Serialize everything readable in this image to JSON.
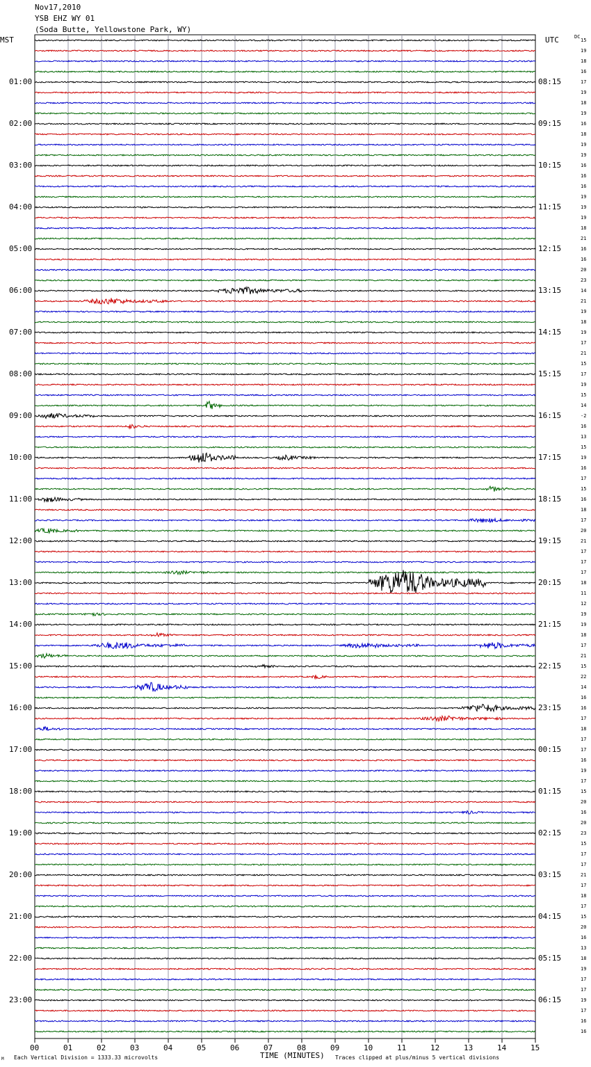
{
  "header": {
    "date": "Nov17,2010",
    "station": "YSB EHZ WY 01",
    "location": "(Soda Butte, Yellowstone Park, WY)"
  },
  "left_timezone": "MST",
  "right_timezone": "UTC",
  "dc_label": "DC",
  "footer": {
    "scale_note": "Each Vertical Division = 1333.33 microvolts",
    "clip_note": "Traces clipped at plus/minus 5 vertical divisions",
    "corner_mark": "M"
  },
  "colors": {
    "trace_cycle": [
      "#000000",
      "#cc0000",
      "#0000cc",
      "#006600"
    ],
    "grid": "#9999aa"
  },
  "chart_data": {
    "type": "line",
    "title": "YSB EHZ WY 01",
    "xlabel": "TIME (MINUTES)",
    "ylabel": "",
    "x_ticks": [
      "00",
      "01",
      "02",
      "03",
      "04",
      "05",
      "06",
      "07",
      "08",
      "09",
      "10",
      "11",
      "12",
      "13",
      "14",
      "15"
    ],
    "xlim": [
      0,
      15
    ],
    "left_hour_labels": [
      "01:00",
      "02:00",
      "03:00",
      "04:00",
      "05:00",
      "06:00",
      "07:00",
      "08:00",
      "09:00",
      "10:00",
      "11:00",
      "12:00",
      "13:00",
      "14:00",
      "15:00",
      "16:00",
      "17:00",
      "18:00",
      "19:00",
      "20:00",
      "21:00",
      "22:00",
      "23:00"
    ],
    "right_hour_labels": [
      "08:15",
      "09:15",
      "10:15",
      "11:15",
      "12:15",
      "13:15",
      "14:15",
      "15:15",
      "16:15",
      "17:15",
      "18:15",
      "19:15",
      "20:15",
      "21:15",
      "22:15",
      "23:15",
      "00:15",
      "01:15",
      "02:15",
      "03:15",
      "04:15",
      "05:15",
      "06:15"
    ],
    "trace_dc_offsets": [
      "15",
      "19",
      "18",
      "16",
      "17",
      "19",
      "18",
      "19",
      "16",
      "18",
      "19",
      "19",
      "16",
      "16",
      "16",
      "19",
      "19",
      "19",
      "18",
      "21",
      "16",
      "16",
      "20",
      "23",
      "14",
      "21",
      "19",
      "18",
      "19",
      "17",
      "21",
      "15",
      "17",
      "19",
      "15",
      "14",
      "-2",
      "16",
      "13",
      "15",
      "19",
      "16",
      "17",
      "15",
      "16",
      "18",
      "17",
      "20",
      "21",
      "17",
      "17",
      "17",
      "18",
      "11",
      "12",
      "19",
      "19",
      "18",
      "17",
      "21",
      "15",
      "22",
      "14",
      "16",
      "16",
      "17",
      "18",
      "17",
      "17",
      "16",
      "19",
      "17",
      "15",
      "20",
      "16",
      "20",
      "23",
      "15",
      "17",
      "17",
      "21",
      "17",
      "18",
      "17",
      "15",
      "20",
      "16",
      "13",
      "18",
      "19",
      "17",
      "17",
      "19",
      "17",
      "16",
      "16"
    ],
    "events": [
      {
        "trace": 24,
        "start_min": 5.5,
        "end_min": 8.0,
        "amplitude": 1.8
      },
      {
        "trace": 25,
        "start_min": 1.5,
        "end_min": 4.0,
        "amplitude": 1.5
      },
      {
        "trace": 35,
        "start_min": 5.1,
        "end_min": 5.6,
        "amplitude": 2.5
      },
      {
        "trace": 36,
        "start_min": 0.0,
        "end_min": 1.8,
        "amplitude": 1.3
      },
      {
        "trace": 37,
        "start_min": 2.7,
        "end_min": 3.3,
        "amplitude": 1.1
      },
      {
        "trace": 40,
        "start_min": 4.6,
        "end_min": 6.0,
        "amplitude": 3.2
      },
      {
        "trace": 40,
        "start_min": 7.2,
        "end_min": 8.4,
        "amplitude": 1.2
      },
      {
        "trace": 43,
        "start_min": 13.5,
        "end_min": 14.2,
        "amplitude": 1.3
      },
      {
        "trace": 44,
        "start_min": 0.1,
        "end_min": 1.4,
        "amplitude": 1.2
      },
      {
        "trace": 46,
        "start_min": 12.9,
        "end_min": 15.0,
        "amplitude": 0.9
      },
      {
        "trace": 47,
        "start_min": 0.0,
        "end_min": 1.3,
        "amplitude": 1.1
      },
      {
        "trace": 51,
        "start_min": 3.9,
        "end_min": 5.2,
        "amplitude": 0.9
      },
      {
        "trace": 52,
        "start_min": 10.0,
        "end_min": 13.5,
        "amplitude": 7.0
      },
      {
        "trace": 55,
        "start_min": 1.5,
        "end_min": 2.2,
        "amplitude": 1.0
      },
      {
        "trace": 57,
        "start_min": 3.5,
        "end_min": 4.2,
        "amplitude": 1.0
      },
      {
        "trace": 58,
        "start_min": 1.7,
        "end_min": 4.5,
        "amplitude": 1.6
      },
      {
        "trace": 58,
        "start_min": 9.2,
        "end_min": 11.5,
        "amplitude": 1.2
      },
      {
        "trace": 58,
        "start_min": 13.2,
        "end_min": 15.0,
        "amplitude": 1.6
      },
      {
        "trace": 59,
        "start_min": 0.0,
        "end_min": 1.0,
        "amplitude": 1.1
      },
      {
        "trace": 60,
        "start_min": 6.6,
        "end_min": 7.2,
        "amplitude": 0.8
      },
      {
        "trace": 61,
        "start_min": 8.3,
        "end_min": 8.8,
        "amplitude": 1.0
      },
      {
        "trace": 62,
        "start_min": 3.0,
        "end_min": 4.6,
        "amplitude": 2.5
      },
      {
        "trace": 64,
        "start_min": 12.8,
        "end_min": 15.0,
        "amplitude": 2.0
      },
      {
        "trace": 65,
        "start_min": 11.5,
        "end_min": 14.0,
        "amplitude": 1.2
      },
      {
        "trace": 66,
        "start_min": 0.1,
        "end_min": 0.8,
        "amplitude": 1.0
      },
      {
        "trace": 74,
        "start_min": 12.8,
        "end_min": 13.4,
        "amplitude": 0.8
      }
    ]
  }
}
